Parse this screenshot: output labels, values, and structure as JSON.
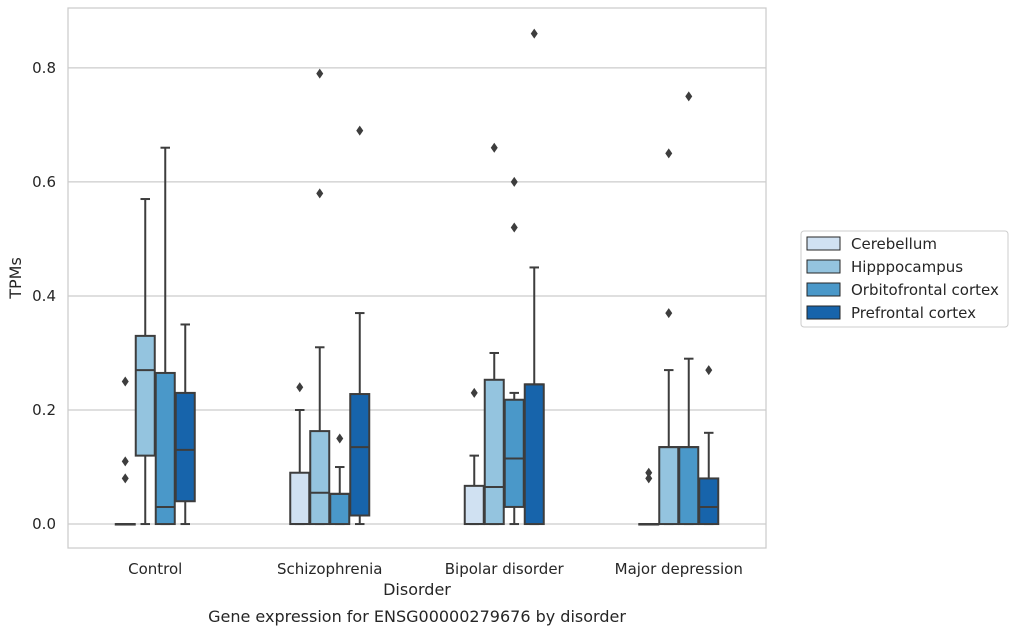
{
  "chart_data": {
    "type": "box",
    "title": "Gene expression for ENSG00000279676 by disorder",
    "xlabel": "Disorder",
    "ylabel": "TPMs",
    "ylim": [
      -0.042,
      0.905
    ],
    "yticks": [
      "0.0",
      "0.2",
      "0.4",
      "0.6",
      "0.8"
    ],
    "grid": true,
    "legend_position": "right",
    "categories": [
      "Control",
      "Schizophrenia",
      "Bipolar disorder",
      "Major depression"
    ],
    "series": [
      {
        "name": "Cerebellum",
        "color": "#d0e1f2",
        "boxes": [
          {
            "whislo": 0,
            "q1": 0,
            "med": 0,
            "q3": 0,
            "whishi": 0,
            "fliers": [
              0.08,
              0.11,
              0.25
            ]
          },
          {
            "whislo": 0,
            "q1": 0,
            "med": 0,
            "q3": 0.09,
            "whishi": 0.2,
            "fliers": [
              0.24
            ]
          },
          {
            "whislo": 0,
            "q1": 0,
            "med": 0,
            "q3": 0.067,
            "whishi": 0.12,
            "fliers": [
              0.23
            ]
          },
          {
            "whislo": 0,
            "q1": 0,
            "med": 0,
            "q3": 0,
            "whishi": 0,
            "fliers": [
              0.08,
              0.09
            ]
          }
        ]
      },
      {
        "name": "Hipppocampus",
        "color": "#94c4df",
        "boxes": [
          {
            "whislo": 0,
            "q1": 0.12,
            "med": 0.27,
            "q3": 0.33,
            "whishi": 0.57,
            "fliers": []
          },
          {
            "whislo": 0,
            "q1": 0,
            "med": 0.055,
            "q3": 0.163,
            "whishi": 0.31,
            "fliers": [
              0.58,
              0.79
            ]
          },
          {
            "whislo": 0,
            "q1": 0,
            "med": 0.065,
            "q3": 0.253,
            "whishi": 0.3,
            "fliers": [
              0.66
            ]
          },
          {
            "whislo": 0,
            "q1": 0,
            "med": 0.135,
            "q3": 0.135,
            "whishi": 0.27,
            "fliers": [
              0.37,
              0.65
            ]
          }
        ]
      },
      {
        "name": "Orbitofrontal cortex",
        "color": "#4a98c9",
        "boxes": [
          {
            "whislo": 0,
            "q1": 0,
            "med": 0.03,
            "q3": 0.265,
            "whishi": 0.66,
            "fliers": []
          },
          {
            "whislo": 0,
            "q1": 0,
            "med": 0.053,
            "q3": 0.053,
            "whishi": 0.1,
            "fliers": [
              0.15
            ]
          },
          {
            "whislo": 0,
            "q1": 0.03,
            "med": 0.115,
            "q3": 0.218,
            "whishi": 0.23,
            "fliers": [
              0.52,
              0.6
            ]
          },
          {
            "whislo": 0,
            "q1": 0,
            "med": 0.135,
            "q3": 0.135,
            "whishi": 0.29,
            "fliers": [
              0.75
            ]
          }
        ]
      },
      {
        "name": "Prefrontal cortex",
        "color": "#1764ab",
        "boxes": [
          {
            "whislo": 0,
            "q1": 0.04,
            "med": 0.13,
            "q3": 0.23,
            "whishi": 0.35,
            "fliers": []
          },
          {
            "whislo": 0,
            "q1": 0.015,
            "med": 0.135,
            "q3": 0.228,
            "whishi": 0.37,
            "fliers": [
              0.69
            ]
          },
          {
            "whislo": 0,
            "q1": 0,
            "med": 0.245,
            "q3": 0.245,
            "whishi": 0.45,
            "fliers": [
              0.86
            ]
          },
          {
            "whislo": 0,
            "q1": 0,
            "med": 0.03,
            "q3": 0.08,
            "whishi": 0.16,
            "fliers": [
              0.27
            ]
          }
        ]
      }
    ]
  }
}
